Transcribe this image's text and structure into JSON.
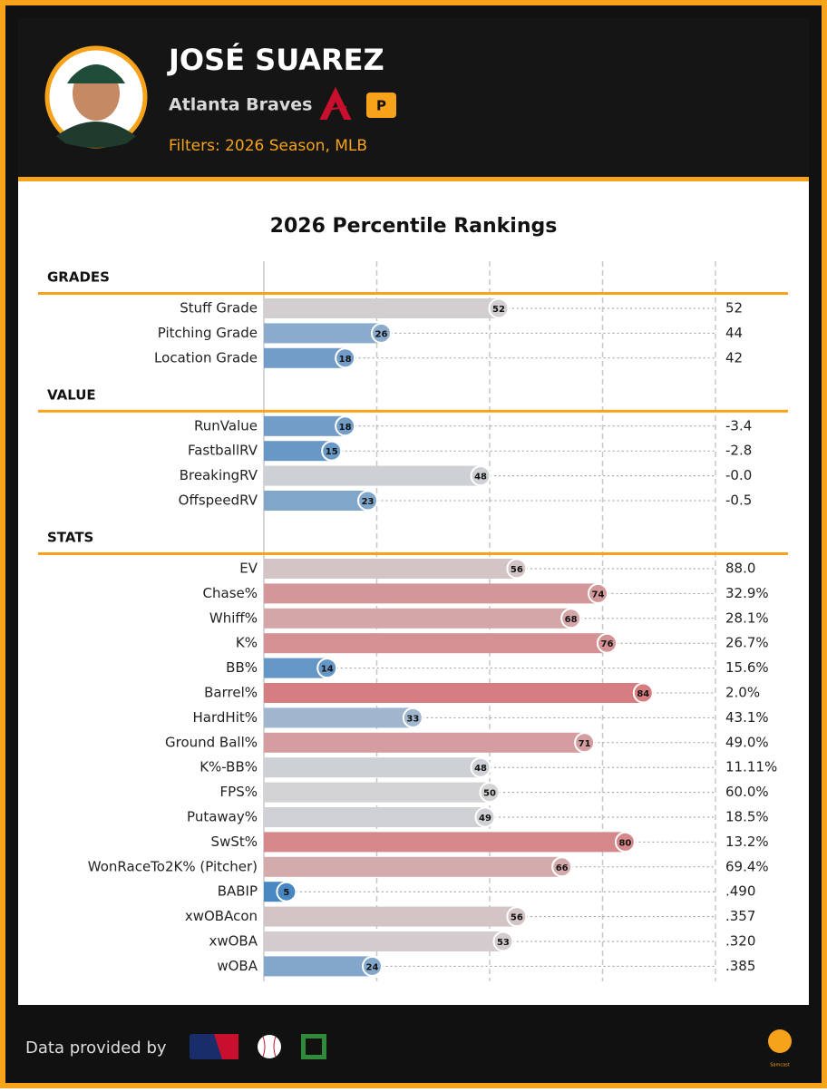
{
  "header": {
    "name": "JOSÉ SUAREZ",
    "team": "Atlanta Braves",
    "position": "P",
    "filters": "Filters: 2026 Season, MLB"
  },
  "footer": {
    "credit": "Data provided by",
    "brand": "Samcast"
  },
  "chart_data": {
    "type": "percentile-bar",
    "title": "2026 Percentile Rankings",
    "xlim": [
      0,
      100
    ],
    "xticks": [
      0,
      25,
      50,
      75,
      100
    ],
    "grid": true,
    "color_scale": [
      "#3a7fc0",
      "#d3d3d5",
      "#d65558"
    ],
    "sections": [
      {
        "name": "GRADES",
        "categories": [
          "Stuff Grade",
          "Pitching Grade",
          "Location Grade"
        ],
        "values": [
          52,
          26,
          18
        ],
        "stats": [
          "52",
          "44",
          "42"
        ]
      },
      {
        "name": "VALUE",
        "categories": [
          "RunValue",
          "FastballRV",
          "BreakingRV",
          "OffspeedRV"
        ],
        "values": [
          18,
          15,
          48,
          23
        ],
        "stats": [
          "-3.4",
          "-2.8",
          "-0.0",
          "-0.5"
        ]
      },
      {
        "name": "STATS",
        "categories": [
          "EV",
          "Chase%",
          "Whiff%",
          "K%",
          "BB%",
          "Barrel%",
          "HardHit%",
          "Ground Ball%",
          "K%-BB%",
          "FPS%",
          "Putaway%",
          "SwSt%",
          "WonRaceTo2K% (Pitcher)",
          "BABIP",
          "xwOBAcon",
          "xwOBA",
          "wOBA"
        ],
        "values": [
          56,
          74,
          68,
          76,
          14,
          84,
          33,
          71,
          48,
          50,
          49,
          80,
          66,
          5,
          56,
          53,
          24
        ],
        "stats": [
          "88.0",
          "32.9%",
          "28.1%",
          "26.7%",
          "15.6%",
          "2.0%",
          "43.1%",
          "49.0%",
          "11.11%",
          "60.0%",
          "18.5%",
          "13.2%",
          "69.4%",
          ".490",
          ".357",
          ".320",
          ".385"
        ]
      }
    ]
  }
}
